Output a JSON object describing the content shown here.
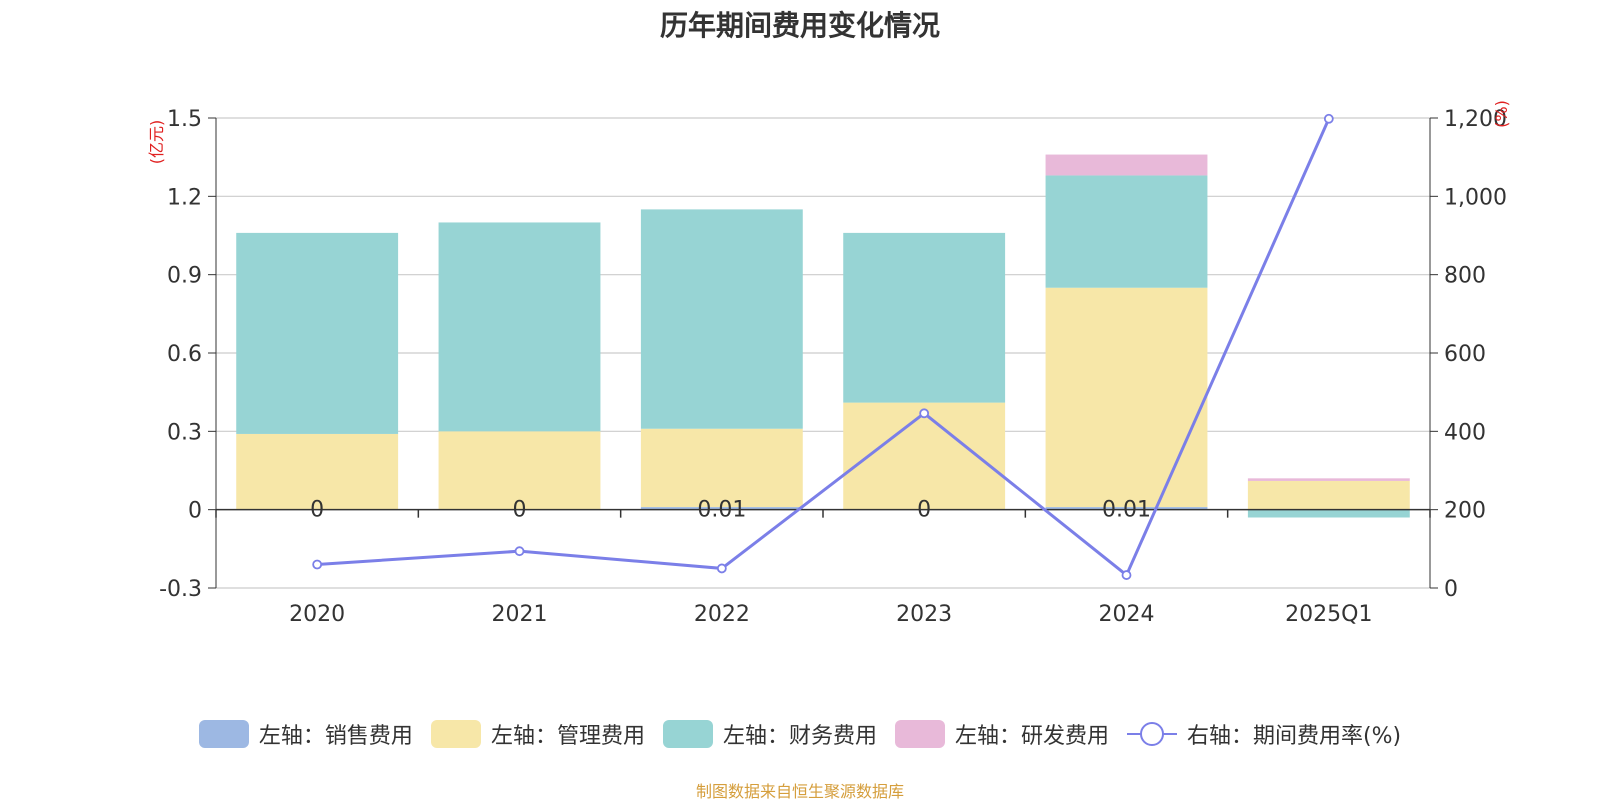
{
  "title": "历年期间费用变化情况",
  "source": "制图数据来自恒生聚源数据库",
  "chart_data": {
    "type": "bar",
    "stacked": true,
    "categories": [
      "2020",
      "2021",
      "2022",
      "2023",
      "2024",
      "2025Q1"
    ],
    "left_axis": {
      "unit": "(亿元)",
      "ylim": [
        -0.3,
        1.5
      ],
      "ticks": [
        "-0.3",
        "0",
        "0.3",
        "0.6",
        "0.9",
        "1.2",
        "1.5"
      ]
    },
    "right_axis": {
      "unit": "(%)",
      "ylim": [
        0,
        1200
      ],
      "ticks": [
        "0",
        "200",
        "400",
        "600",
        "800",
        "1,000",
        "1,200"
      ]
    },
    "series": [
      {
        "name": "左轴：销售费用",
        "axis": "left",
        "color": "#9db8e3",
        "values": [
          0,
          0,
          0.01,
          0,
          0.01,
          0
        ]
      },
      {
        "name": "左轴：管理费用",
        "axis": "left",
        "color": "#f7e7a8",
        "values": [
          0.29,
          0.3,
          0.3,
          0.41,
          0.84,
          0.11
        ]
      },
      {
        "name": "左轴：财务费用",
        "axis": "left",
        "color": "#97d4d4",
        "values": [
          0.77,
          0.8,
          0.84,
          0.65,
          0.43,
          -0.03
        ]
      },
      {
        "name": "左轴：研发费用",
        "axis": "left",
        "color": "#e8b9d9",
        "values": [
          0,
          0,
          0,
          0,
          0.08,
          0.01
        ]
      },
      {
        "name": "右轴：期间费用率(%)",
        "axis": "right",
        "type": "line",
        "color": "#7b7fe8",
        "values": [
          60,
          94,
          50,
          446,
          33,
          1198
        ]
      }
    ],
    "data_labels": [
      "0",
      "0",
      "0.01",
      "0",
      "0.01",
      ""
    ],
    "grid": true,
    "legend_position": "bottom"
  }
}
